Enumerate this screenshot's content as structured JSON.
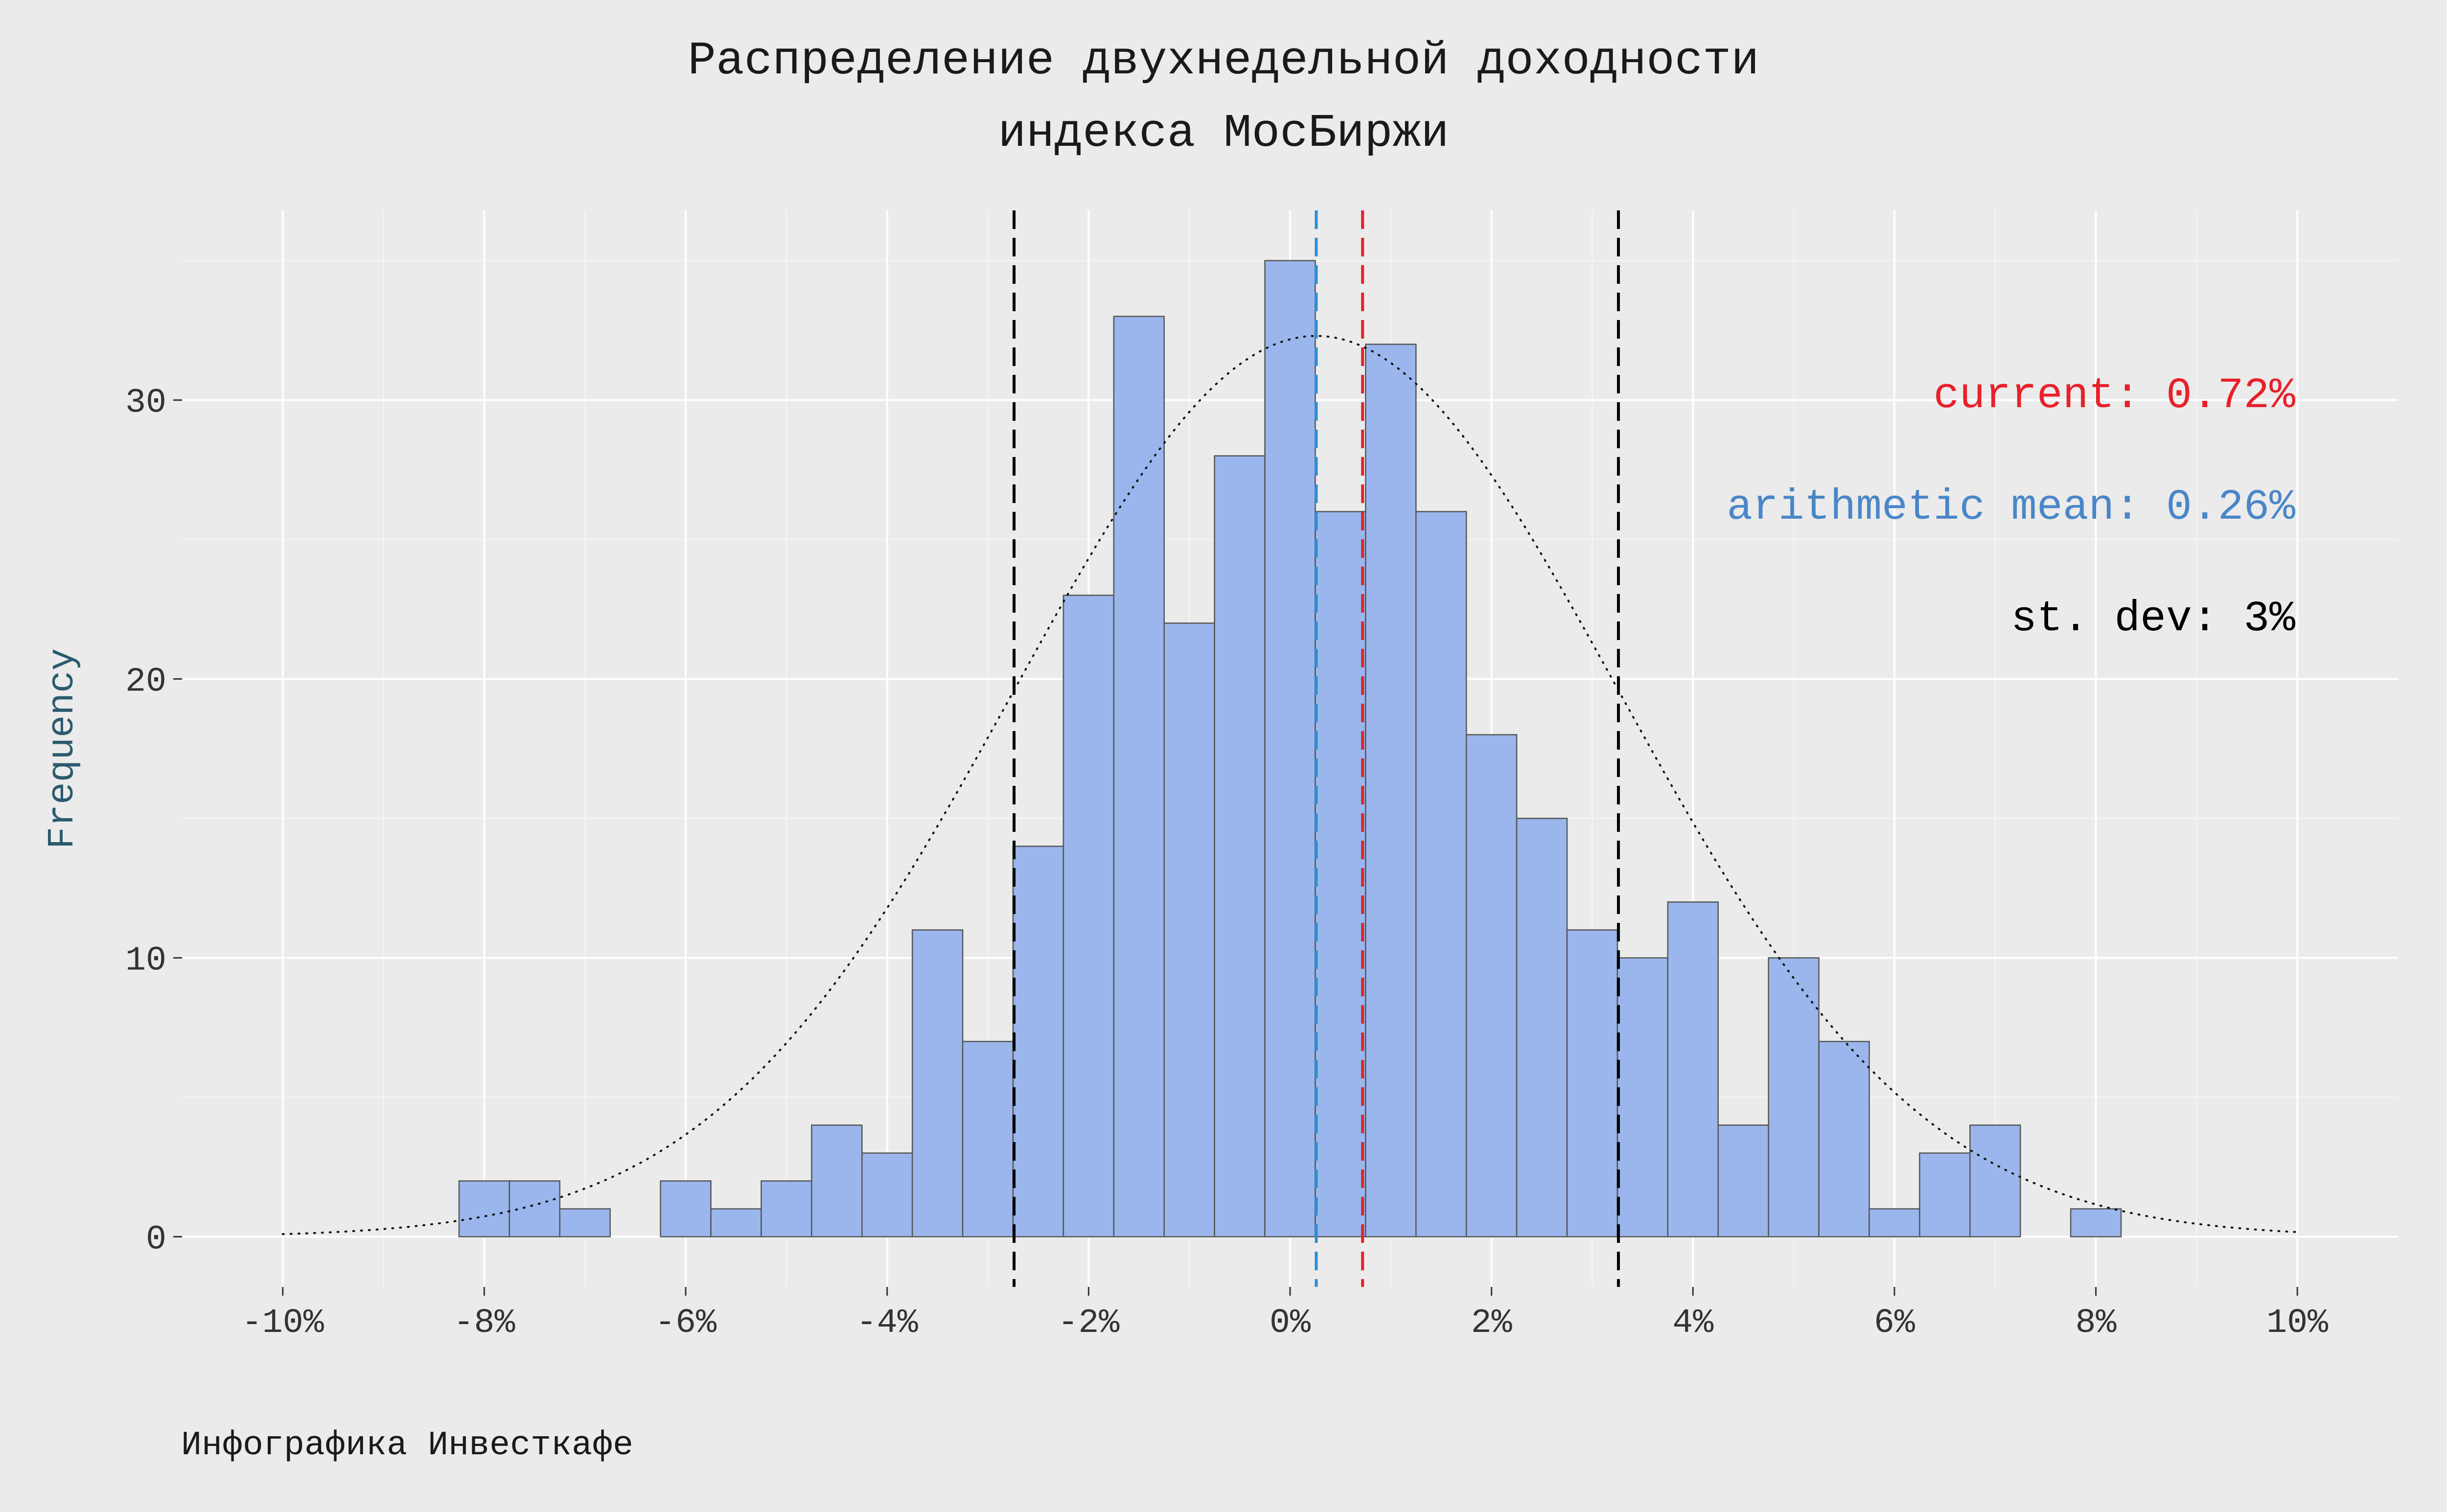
{
  "title_line1": "Распределение двухнедельной доходности",
  "title_line2": "индекса МосБиржи",
  "caption": "Инфографика Инвесткафе",
  "chart_data": {
    "type": "histogram",
    "ylabel": "Frequency",
    "xlim": [
      -11.0,
      11.0
    ],
    "ylim": [
      -1.8,
      36.8
    ],
    "x_ticks": [
      -10,
      -8,
      -6,
      -4,
      -2,
      0,
      2,
      4,
      6,
      8,
      10
    ],
    "x_tick_labels": [
      "-10%",
      "-8%",
      "-6%",
      "-4%",
      "-2%",
      "0%",
      "2%",
      "4%",
      "6%",
      "8%",
      "10%"
    ],
    "y_ticks": [
      0,
      10,
      20,
      30
    ],
    "y_tick_labels": [
      "0",
      "10",
      "20",
      "30"
    ],
    "bin_width": 0.5,
    "bins_start": [
      -8.25,
      -7.75,
      -7.25,
      -6.75,
      -6.25,
      -5.75,
      -5.25,
      -4.75,
      -4.25,
      -3.75,
      -3.25,
      -2.75,
      -2.25,
      -1.75,
      -1.25,
      -0.75,
      -0.25,
      0.25,
      0.75,
      1.25,
      1.75,
      2.25,
      2.75,
      3.25,
      3.75,
      4.25,
      4.75,
      5.25,
      5.75,
      6.25,
      6.75,
      7.25,
      7.75
    ],
    "counts": [
      2,
      2,
      1,
      0,
      2,
      1,
      2,
      4,
      3,
      11,
      7,
      14,
      23,
      33,
      22,
      28,
      35,
      26,
      32,
      26,
      18,
      15,
      11,
      10,
      12,
      4,
      10,
      7,
      1,
      3,
      4,
      0,
      1
    ],
    "normal_curve": {
      "mean": 0.26,
      "sd": 3.0,
      "peak": 32.3,
      "x_range": [
        -10,
        10
      ]
    },
    "vlines": [
      {
        "name": "current",
        "x": 0.72,
        "color": "#e8202a",
        "style": "dashed"
      },
      {
        "name": "arithmetic mean",
        "x": 0.26,
        "color": "#2b8fd3",
        "style": "dashed"
      },
      {
        "name": "mean-minus-sd",
        "x": -2.74,
        "color": "#000000",
        "style": "dashed"
      },
      {
        "name": "mean-plus-sd",
        "x": 3.26,
        "color": "#000000",
        "style": "dashed"
      }
    ],
    "annotations": [
      {
        "text": "current: 0.72%",
        "color": "#e8202a"
      },
      {
        "text": "arithmetic mean: 0.26%",
        "color": "#4a86c8"
      },
      {
        "text": "st. dev: 3%",
        "color": "#000000"
      }
    ],
    "bar_fill": "#9ab6ec",
    "bar_stroke": "#555555",
    "grid": true
  }
}
